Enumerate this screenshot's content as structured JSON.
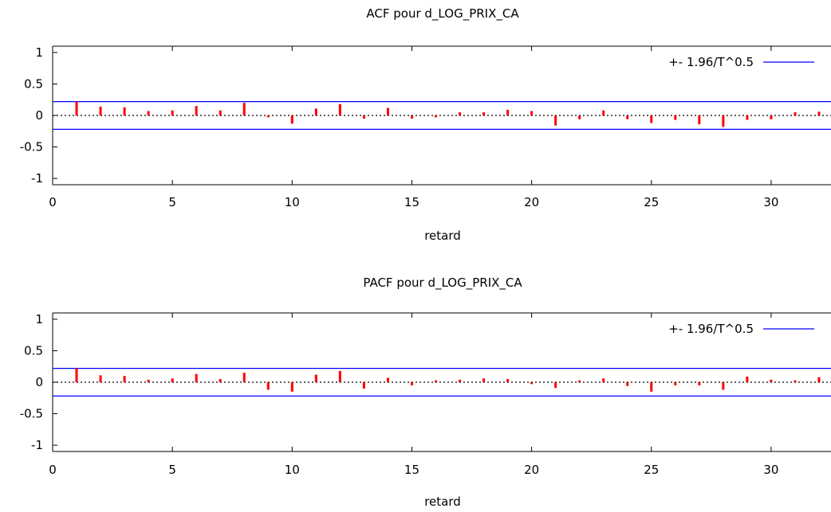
{
  "chart_data": [
    {
      "type": "bar",
      "title": "ACF pour d_LOG_PRIX_CA",
      "xlabel": "retard",
      "ylabel": "",
      "xlim": [
        0,
        32.5
      ],
      "ylim": [
        -1.1,
        1.1
      ],
      "x_ticks": [
        "0",
        "5",
        "10",
        "15",
        "20",
        "25",
        "30"
      ],
      "y_ticks": [
        "1",
        "0.5",
        "0",
        "-0.5",
        "-1"
      ],
      "legend": {
        "label": "+- 1.96/T^0.5",
        "position": "top-right",
        "color": "#0000ff"
      },
      "confidence_band": 0.22,
      "bar_color": "#ff0000",
      "lags": [
        1,
        2,
        3,
        4,
        5,
        6,
        7,
        8,
        9,
        10,
        11,
        12,
        13,
        14,
        15,
        16,
        17,
        18,
        19,
        20,
        21,
        22,
        23,
        24,
        25,
        26,
        27,
        28,
        29,
        30,
        31,
        32
      ],
      "values": [
        0.22,
        0.14,
        0.13,
        0.07,
        0.08,
        0.15,
        0.08,
        0.2,
        -0.03,
        -0.13,
        0.11,
        0.18,
        -0.05,
        0.12,
        -0.05,
        -0.03,
        0.05,
        0.05,
        0.09,
        0.07,
        -0.16,
        -0.06,
        0.08,
        -0.06,
        -0.12,
        -0.07,
        -0.14,
        -0.18,
        -0.07,
        -0.06,
        0.05,
        0.06
      ]
    },
    {
      "type": "bar",
      "title": "PACF pour d_LOG_PRIX_CA",
      "xlabel": "retard",
      "ylabel": "",
      "xlim": [
        0,
        32.5
      ],
      "ylim": [
        -1.1,
        1.1
      ],
      "x_ticks": [
        "0",
        "5",
        "10",
        "15",
        "20",
        "25",
        "30"
      ],
      "y_ticks": [
        "1",
        "0.5",
        "0",
        "-0.5",
        "-1"
      ],
      "legend": {
        "label": "+- 1.96/T^0.5",
        "position": "top-right",
        "color": "#0000ff"
      },
      "confidence_band": 0.22,
      "bar_color": "#ff0000",
      "lags": [
        1,
        2,
        3,
        4,
        5,
        6,
        7,
        8,
        9,
        10,
        11,
        12,
        13,
        14,
        15,
        16,
        17,
        18,
        19,
        20,
        21,
        22,
        23,
        24,
        25,
        26,
        27,
        28,
        29,
        30,
        31,
        32
      ],
      "values": [
        0.22,
        0.11,
        0.1,
        0.04,
        0.06,
        0.13,
        0.05,
        0.15,
        -0.12,
        -0.15,
        0.12,
        0.18,
        -0.1,
        0.07,
        -0.05,
        0.03,
        0.04,
        0.06,
        0.05,
        -0.03,
        -0.09,
        0.03,
        0.06,
        -0.06,
        -0.15,
        -0.05,
        -0.05,
        -0.12,
        0.09,
        0.04,
        0.03,
        0.08
      ]
    }
  ]
}
